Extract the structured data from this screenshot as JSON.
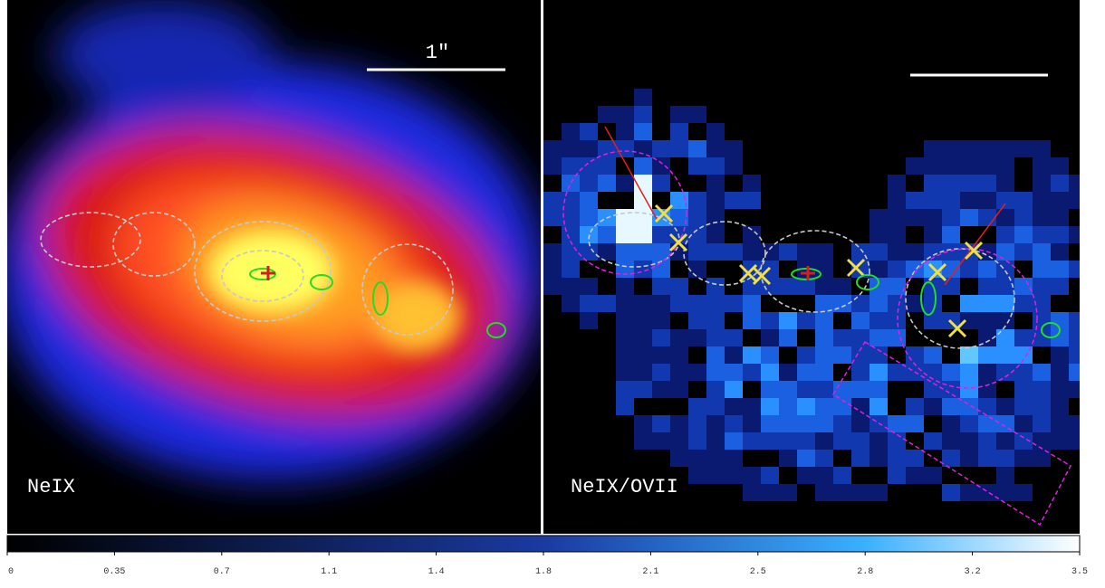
{
  "panels": [
    {
      "label": "NeIX",
      "scale_bar_label": "1\""
    },
    {
      "label": "NeIX/OVII"
    }
  ],
  "colorbar": {
    "lim": [
      0,
      3.5
    ],
    "ticks": [
      0,
      0.35,
      0.7,
      {
        "value": 1.05,
        "label": "1.1"
      },
      1.4,
      {
        "value": 1.75,
        "label": "1.8"
      },
      2.1,
      {
        "value": 2.45,
        "label": "2.5"
      },
      2.8,
      {
        "value": 3.15,
        "label": "3.2"
      },
      3.5
    ]
  }
}
